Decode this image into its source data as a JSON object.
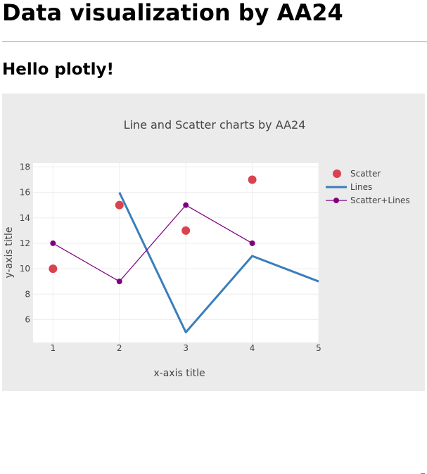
{
  "page": {
    "heading": "Data visualization by AA24",
    "subheading": "Hello plotly!"
  },
  "chart_data": {
    "type": "line",
    "title": "Line and Scatter charts by AA24",
    "xlabel": "x-axis title",
    "ylabel": "y-axis title",
    "xlim": [
      0.7,
      5
    ],
    "ylim": [
      4.2,
      18.3
    ],
    "xticks": [
      1,
      2,
      3,
      4,
      5
    ],
    "yticks": [
      6,
      8,
      10,
      12,
      14,
      16,
      18
    ],
    "grid": true,
    "legend_position": "top-right",
    "series": [
      {
        "name": "Scatter",
        "mode": "markers",
        "color": "#d9434f",
        "x": [
          1,
          2,
          3,
          4
        ],
        "y": [
          10,
          15,
          13,
          17
        ]
      },
      {
        "name": "Lines",
        "mode": "lines",
        "color": "#3a7ebb",
        "x": [
          2,
          3,
          4,
          5
        ],
        "y": [
          16,
          5,
          11,
          9
        ]
      },
      {
        "name": "Scatter+Lines",
        "mode": "lines+markers",
        "color": "#800080",
        "x": [
          1,
          2,
          3,
          4
        ],
        "y": [
          12,
          9,
          15,
          12
        ]
      }
    ]
  }
}
